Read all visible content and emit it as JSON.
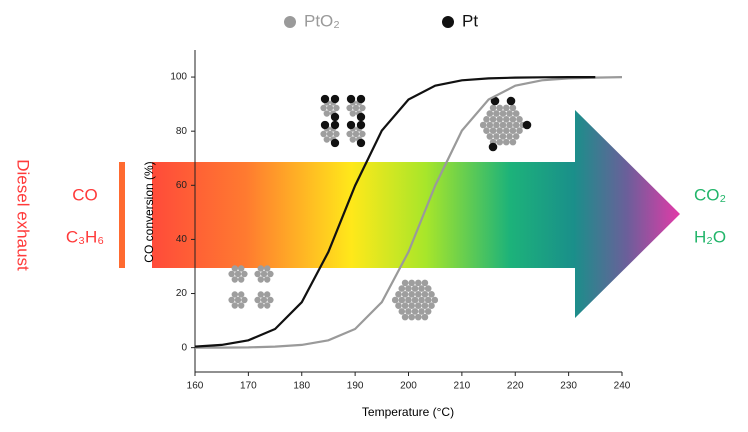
{
  "chart_data": {
    "type": "line",
    "x_label": "Temperature (°C)",
    "y_label": "CO conversion (%)",
    "x": [
      160,
      165,
      170,
      175,
      180,
      185,
      190,
      195,
      200,
      205,
      210,
      215,
      220,
      225,
      230,
      235,
      240
    ],
    "series": [
      {
        "name": "PtO₂",
        "color": "#9a9a9a",
        "values": [
          0,
          0,
          0.1,
          0.4,
          1,
          2.7,
          6.9,
          16.8,
          35.4,
          59.9,
          80.2,
          91.7,
          96.8,
          98.8,
          99.5,
          99.8,
          100
        ]
      },
      {
        "name": "Pt",
        "color": "#111111",
        "values": [
          0.4,
          1,
          2.7,
          6.9,
          16.8,
          35.4,
          59.9,
          80.2,
          91.7,
          96.8,
          98.8,
          99.5,
          99.8,
          99.9,
          100,
          100,
          null
        ]
      }
    ],
    "xlim": [
      160,
      240
    ],
    "xticks": [
      160,
      170,
      180,
      190,
      200,
      210,
      220,
      230,
      240
    ],
    "ylim": [
      -9,
      110
    ],
    "yticks": [
      0,
      20,
      40,
      60,
      80,
      100
    ],
    "annotations": {
      "left_title": "Diesel exhaust",
      "inputs": [
        "CO",
        "C₃H₆"
      ],
      "outputs": [
        "CO₂",
        "H₂O"
      ]
    }
  }
}
